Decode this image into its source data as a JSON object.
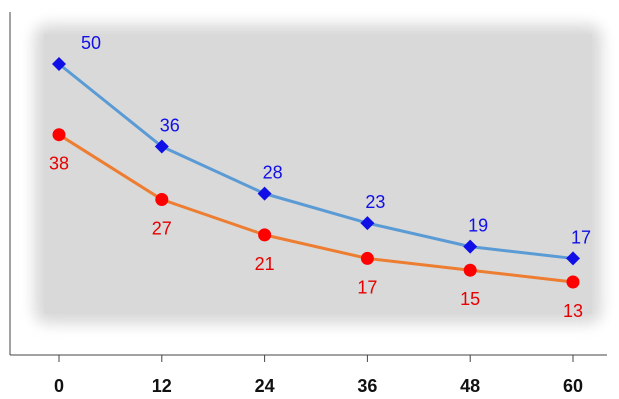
{
  "chart_data": {
    "type": "line",
    "x": [
      0,
      12,
      24,
      36,
      48,
      60
    ],
    "xlim": [
      0,
      60
    ],
    "ylim": [
      10,
      55
    ],
    "series": [
      {
        "values": [
          50,
          36,
          28,
          23,
          19,
          17
        ],
        "line_color": "#5b9bd5",
        "marker": "diamond",
        "marker_color": "#1010e6",
        "label_color": "#1010e6",
        "label_position": "above"
      },
      {
        "values": [
          38,
          27,
          21,
          17,
          15,
          13
        ],
        "line_color": "#ed7d31",
        "marker": "circle",
        "marker_color": "#ff0000",
        "label_color": "#e60000",
        "label_position": "below"
      }
    ],
    "plot_background": "#d9d9d9",
    "grid": false,
    "legend": "none"
  }
}
